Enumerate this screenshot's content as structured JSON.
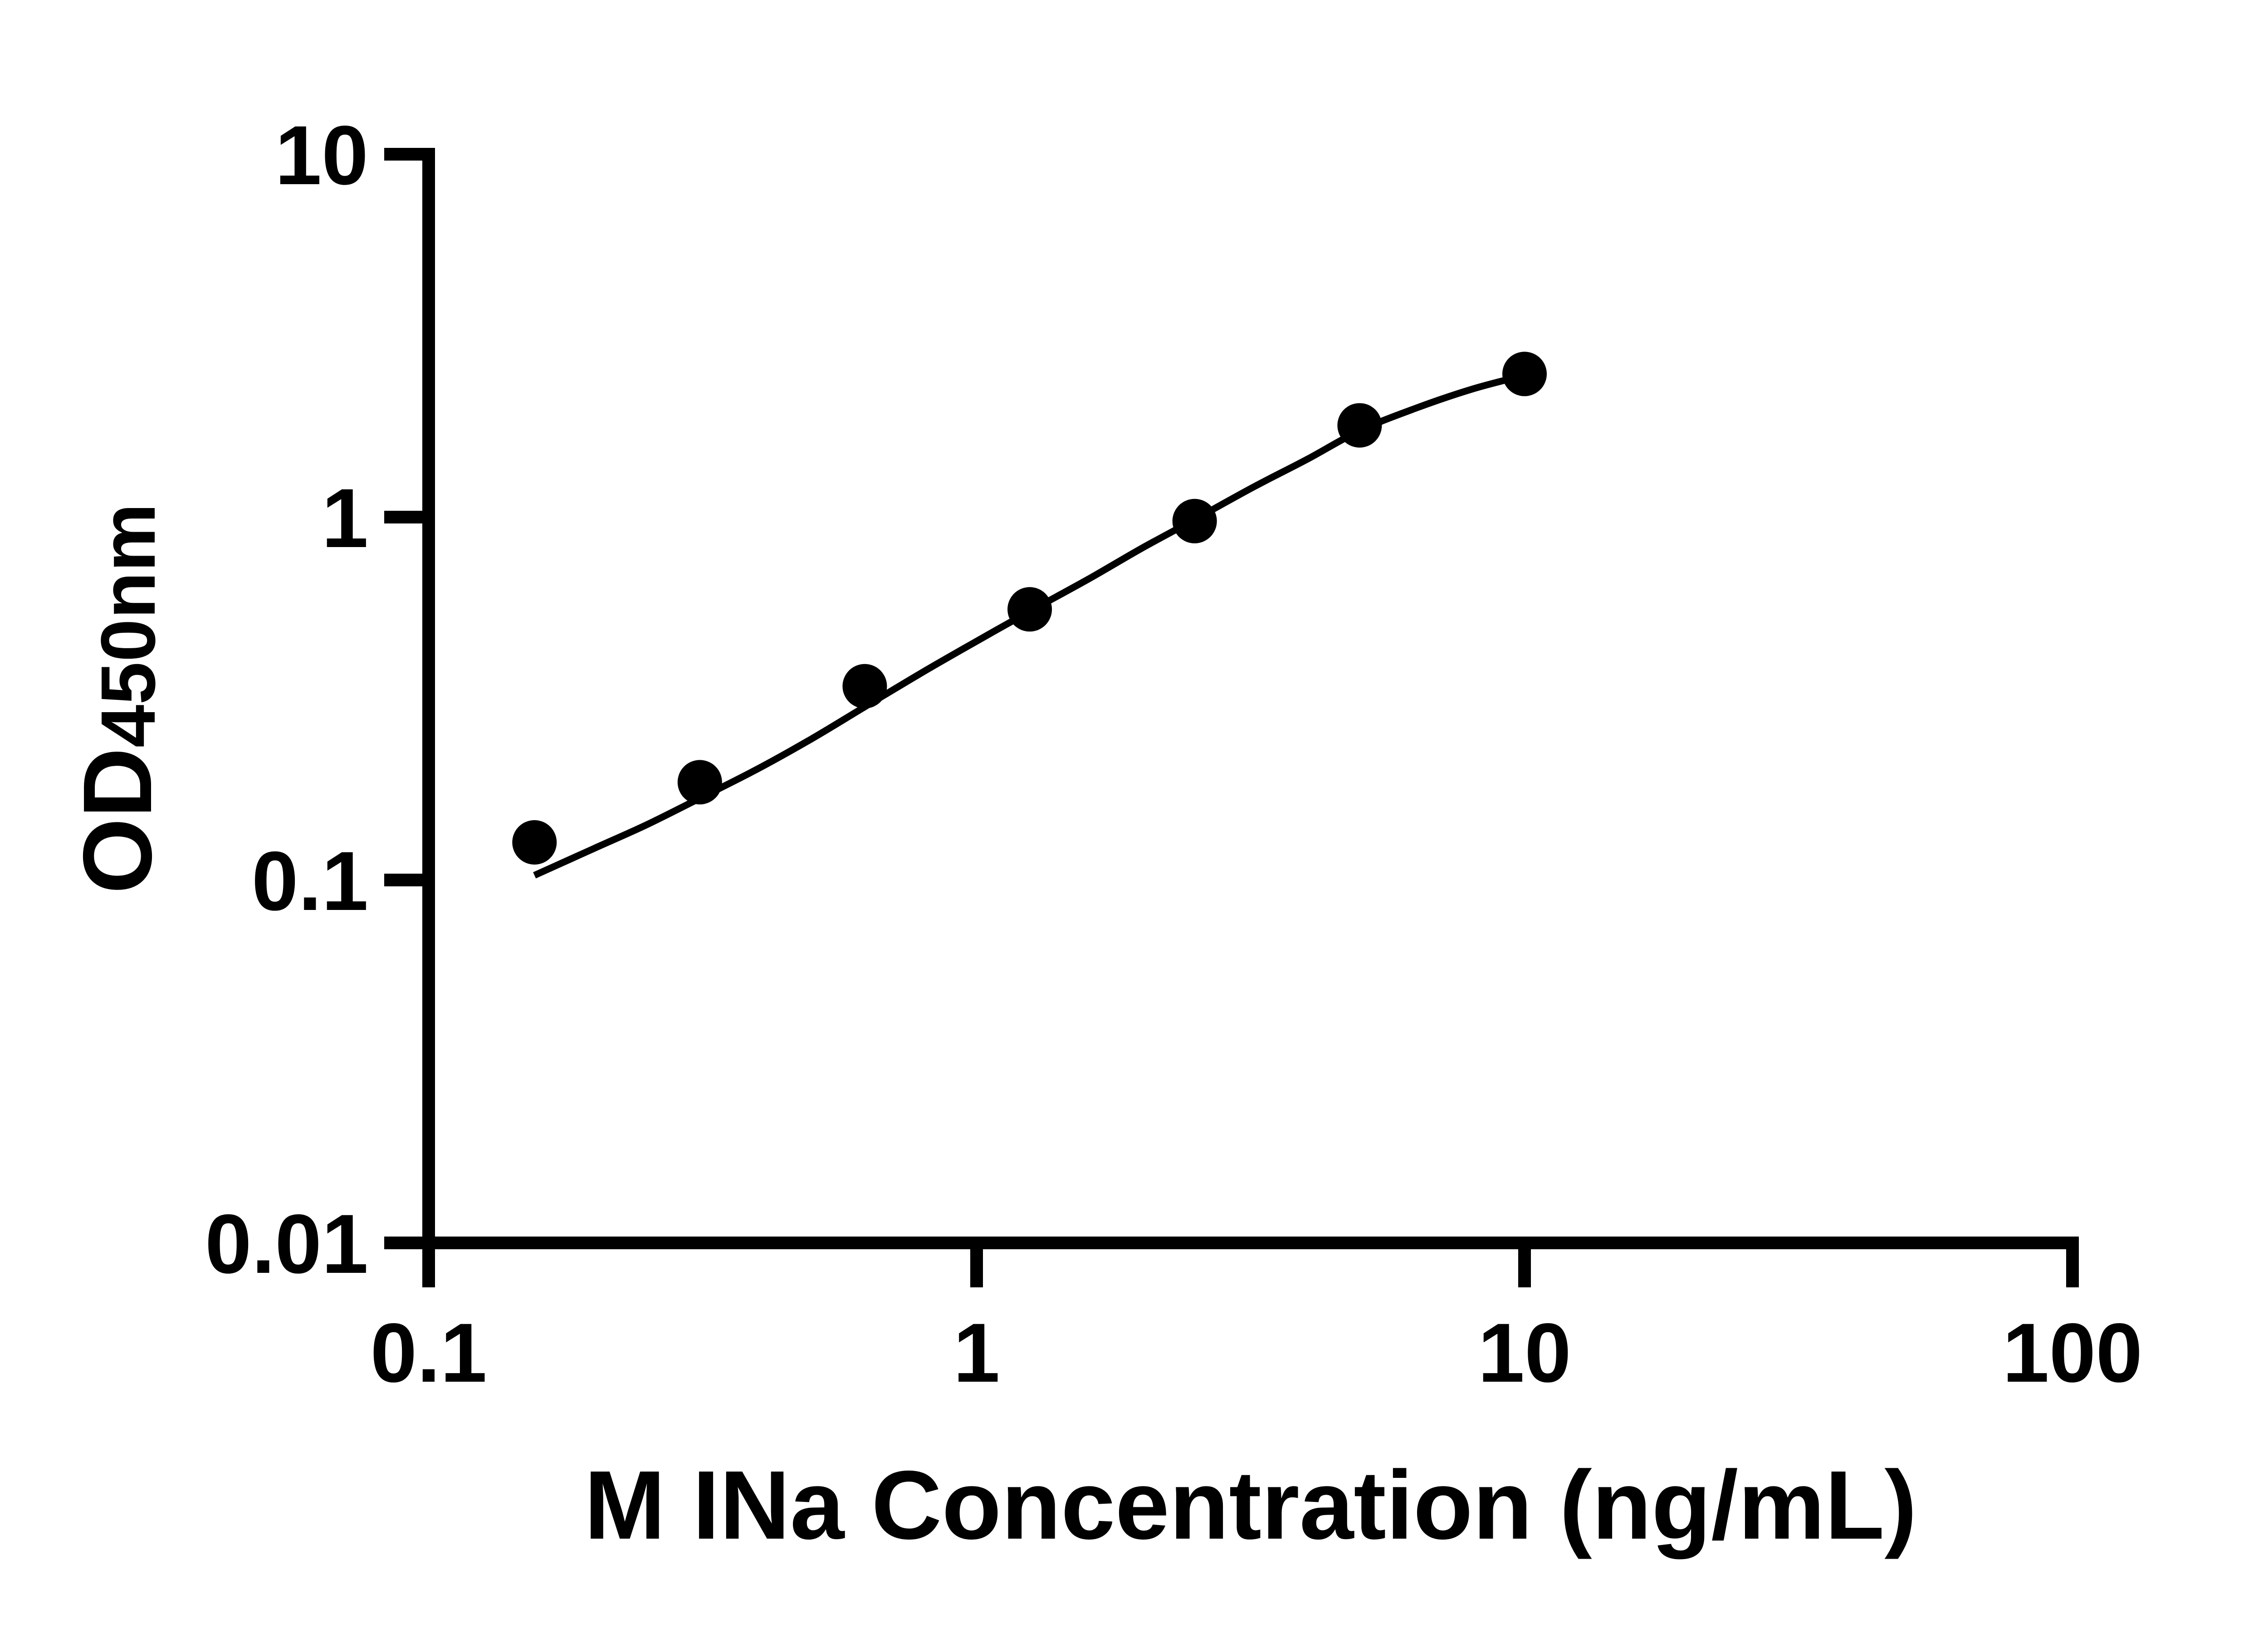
{
  "figure": {
    "background": "#ffffff"
  },
  "chart_data": {
    "type": "scatter",
    "subtype": "standard-curve-with-fit",
    "title": "",
    "xlabel": "M INa Concentration (ng/mL)",
    "ylabel_main": "OD",
    "ylabel_sub": "450nm",
    "x_scale": "log",
    "y_scale": "log",
    "xlim": [
      0.1,
      100
    ],
    "ylim": [
      0.01,
      10
    ],
    "grid": false,
    "legend_position": "none",
    "x_ticks": [
      {
        "value": 0.1,
        "label": "0.1"
      },
      {
        "value": 1,
        "label": "1"
      },
      {
        "value": 10,
        "label": "10"
      },
      {
        "value": 100,
        "label": "100"
      }
    ],
    "y_ticks": [
      {
        "value": 0.01,
        "label": "0.01"
      },
      {
        "value": 0.1,
        "label": "0.1"
      },
      {
        "value": 1,
        "label": "1"
      },
      {
        "value": 10,
        "label": "10"
      }
    ],
    "series": [
      {
        "name": "standard points",
        "type": "scatter",
        "marker": "filled-circle",
        "color": "#000000",
        "points": [
          {
            "x": 0.156,
            "y": 0.127
          },
          {
            "x": 0.3125,
            "y": 0.186
          },
          {
            "x": 0.625,
            "y": 0.342
          },
          {
            "x": 1.25,
            "y": 0.557
          },
          {
            "x": 2.5,
            "y": 0.975
          },
          {
            "x": 5,
            "y": 1.79
          },
          {
            "x": 10,
            "y": 2.48
          }
        ]
      },
      {
        "name": "fitted curve",
        "type": "line",
        "color": "#000000",
        "points": [
          {
            "x": 0.156,
            "y": 0.103
          },
          {
            "x": 0.2,
            "y": 0.122
          },
          {
            "x": 0.25,
            "y": 0.142
          },
          {
            "x": 0.3125,
            "y": 0.168
          },
          {
            "x": 0.4,
            "y": 0.203
          },
          {
            "x": 0.5,
            "y": 0.245
          },
          {
            "x": 0.625,
            "y": 0.3
          },
          {
            "x": 0.8,
            "y": 0.375
          },
          {
            "x": 1.0,
            "y": 0.455
          },
          {
            "x": 1.25,
            "y": 0.55
          },
          {
            "x": 1.6,
            "y": 0.675
          },
          {
            "x": 2.0,
            "y": 0.82
          },
          {
            "x": 2.5,
            "y": 0.985
          },
          {
            "x": 3.2,
            "y": 1.21
          },
          {
            "x": 4.0,
            "y": 1.44
          },
          {
            "x": 5.0,
            "y": 1.73
          },
          {
            "x": 6.3,
            "y": 1.99
          },
          {
            "x": 8.0,
            "y": 2.25
          },
          {
            "x": 10.0,
            "y": 2.46
          }
        ]
      }
    ],
    "colors": {
      "axis": "#000000",
      "text": "#000000",
      "marker": "#000000",
      "curve": "#000000",
      "background": "#ffffff"
    }
  }
}
